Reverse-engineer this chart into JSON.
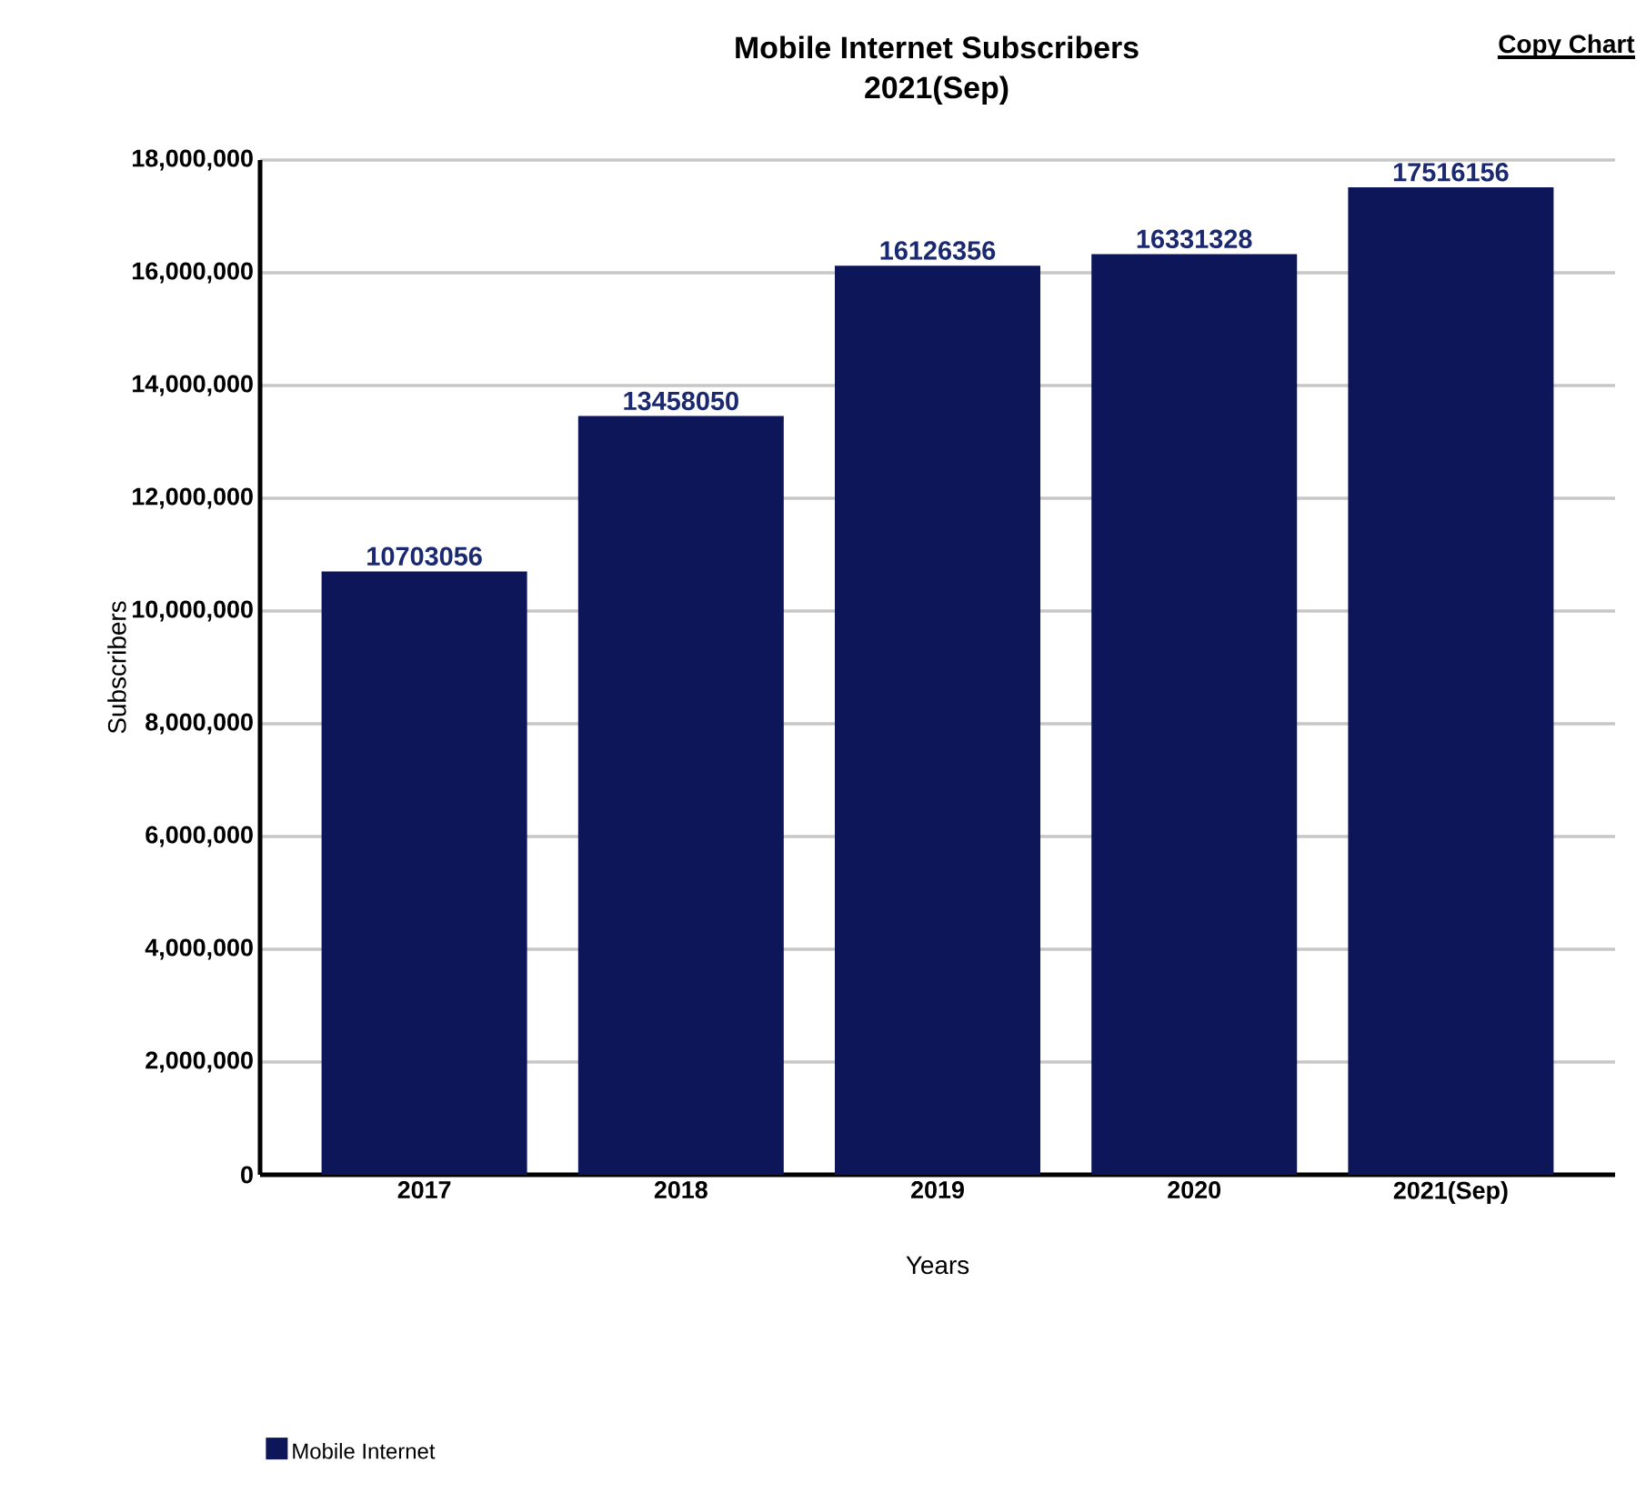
{
  "chart_data": {
    "type": "bar",
    "title": "Mobile Internet Subscribers",
    "subtitle": "2021(Sep)",
    "annotations": [
      "Copy Chart"
    ],
    "xlabel": "Years",
    "ylabel": "Subscribers",
    "categories": [
      "2017",
      "2018",
      "2019",
      "2020",
      "2021(Sep)"
    ],
    "series": [
      {
        "name": "Mobile Internet",
        "color": "#0c1659",
        "values": [
          10703056,
          13458050,
          16126356,
          16331328,
          17516156
        ]
      }
    ],
    "ylim": [
      0,
      18000000
    ],
    "yticks": [
      0,
      {
        "value": 2000000,
        "label": "2,000,000"
      },
      {
        "value": 4000000,
        "label": "4,000,000"
      },
      {
        "value": 6000000,
        "label": "6,000,000"
      },
      {
        "value": 8000000,
        "label": "8,000,000"
      },
      {
        "value": 10000000,
        "label": "10,000,000"
      },
      {
        "value": 12000000,
        "label": "12,000,000"
      },
      {
        "value": 14000000,
        "label": "14,000,000"
      },
      {
        "value": 16000000,
        "label": "16,000,000"
      },
      {
        "value": 18000000,
        "label": "18,000,000"
      }
    ],
    "grid": "y",
    "data_labels": true,
    "legend": "bottom left"
  }
}
